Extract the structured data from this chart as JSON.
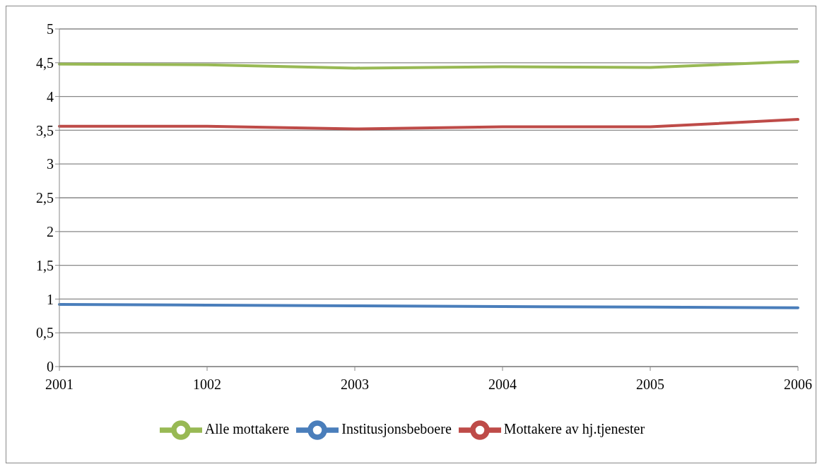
{
  "chart_data": {
    "type": "line",
    "categories": [
      "2001",
      "1002",
      "2003",
      "2004",
      "2005",
      "2006"
    ],
    "series": [
      {
        "name": "Institusjonsbeboere",
        "color": "#4a7ebb",
        "values": [
          0.92,
          0.91,
          0.9,
          0.89,
          0.88,
          0.87
        ]
      },
      {
        "name": "Mottakere av hj.tjenester",
        "color": "#be4b48",
        "values": [
          3.56,
          3.56,
          3.52,
          3.55,
          3.55,
          3.66
        ]
      },
      {
        "name": "Alle mottakere",
        "color": "#98b954",
        "values": [
          4.48,
          4.47,
          4.42,
          4.44,
          4.43,
          4.52
        ]
      }
    ],
    "ylim": [
      0,
      5
    ],
    "yticks": [
      0,
      {
        "value": 0.5,
        "label": "0,5"
      },
      1,
      {
        "value": 1.5,
        "label": "1,5"
      },
      2,
      {
        "value": 2.5,
        "label": "2,5"
      },
      3,
      {
        "value": 3.5,
        "label": "3,5"
      },
      4,
      {
        "value": 4.5,
        "label": "4,5"
      },
      5
    ],
    "grid": "y",
    "legend": "bottom",
    "marker": "none",
    "line_style": "solid"
  }
}
